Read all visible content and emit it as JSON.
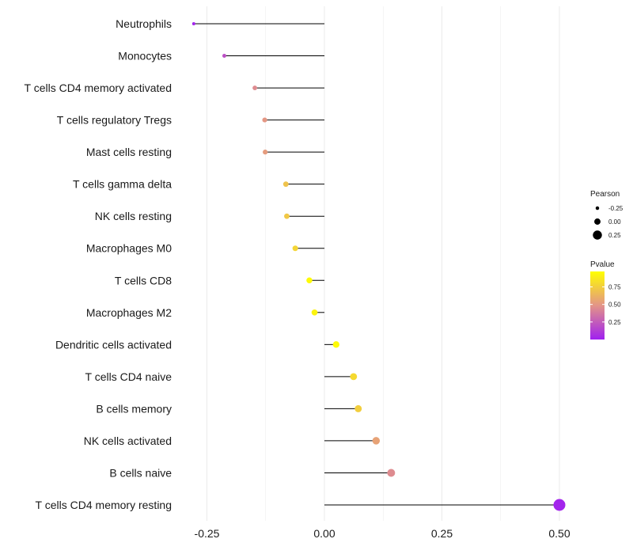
{
  "chart_data": {
    "type": "lollipop",
    "title": "",
    "xlabel": "",
    "ylabel": "",
    "xlim": [
      -0.28,
      0.5
    ],
    "x_ticks": [
      -0.25,
      0.0,
      0.25,
      0.5
    ],
    "x_tick_labels": [
      "-0.25",
      "0.00",
      "0.25",
      "0.50"
    ],
    "grid": true,
    "legend_position": "right",
    "categories": [
      "Neutrophils",
      "Monocytes",
      "T cells CD4 memory activated",
      "T cells regulatory  Tregs",
      "Mast cells resting",
      "T cells gamma delta",
      "NK cells resting",
      "Macrophages M0",
      "T cells CD8",
      "Macrophages M2",
      "Dendritic cells activated",
      "T cells CD4 naive",
      "B cells memory",
      "NK cells activated",
      "B cells naive",
      "T cells CD4 memory resting"
    ],
    "pearson": [
      -0.278,
      -0.213,
      -0.148,
      -0.127,
      -0.126,
      -0.082,
      -0.08,
      -0.062,
      -0.032,
      -0.021,
      0.025,
      0.062,
      0.072,
      0.11,
      0.142,
      0.5
    ],
    "pvalue": [
      0.02,
      0.2,
      0.45,
      0.5,
      0.52,
      0.7,
      0.72,
      0.78,
      0.95,
      0.92,
      0.95,
      0.8,
      0.75,
      0.55,
      0.45,
      0.02
    ],
    "size_legend": {
      "title": "Pearson",
      "labels": [
        "-0.25",
        "0.00",
        "0.25"
      ],
      "values": [
        -0.25,
        0.0,
        0.25
      ]
    },
    "color_legend": {
      "title": "Pvalue",
      "labels": [
        "0.75",
        "0.50",
        "0.25"
      ],
      "values": [
        0.75,
        0.5,
        0.25
      ],
      "range": [
        0.0,
        0.97
      ],
      "colors": {
        "low": "#a020f0",
        "high": "#ffff00"
      }
    },
    "stem_color": "#000000",
    "grid_color": "#ebebeb"
  }
}
